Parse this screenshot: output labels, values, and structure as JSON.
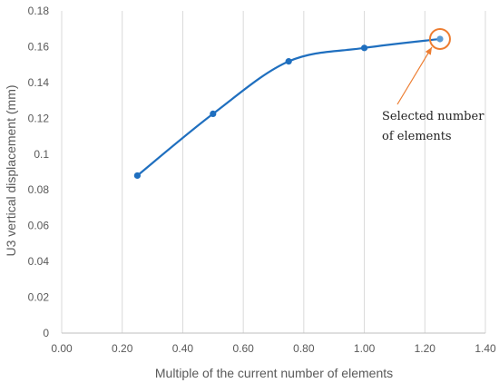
{
  "chart_data": {
    "type": "line",
    "title": "",
    "xlabel": "Multiple of the current number of elements",
    "ylabel": "U3  vertical displacement (mm)",
    "xlim": [
      0,
      1.4
    ],
    "ylim": [
      0,
      0.18
    ],
    "x_ticks": [
      "0.00",
      "0.20",
      "0.40",
      "0.60",
      "0.80",
      "1.00",
      "1.20",
      "1.40"
    ],
    "y_ticks": [
      "0",
      "0.02",
      "0.04",
      "0.06",
      "0.08",
      "0.1",
      "0.12",
      "0.14",
      "0.16",
      "0.18"
    ],
    "grid": "vertical",
    "legend": "none",
    "series": [
      {
        "x": [
          0.25,
          0.5,
          0.75,
          1.0,
          1.25
        ],
        "y": [
          0.088,
          0.1225,
          0.1518,
          0.1593,
          0.1643
        ],
        "color": "#1f6fbf",
        "smooth": true
      }
    ],
    "highlight": {
      "x": 1.25,
      "y": 0.1643,
      "color": "#ed7d31",
      "marker_color": "#5b9bd5"
    },
    "annotations": [
      {
        "lines": [
          "Selected number",
          "of elements"
        ],
        "points_to": [
          1.25,
          0.1643
        ]
      }
    ]
  }
}
